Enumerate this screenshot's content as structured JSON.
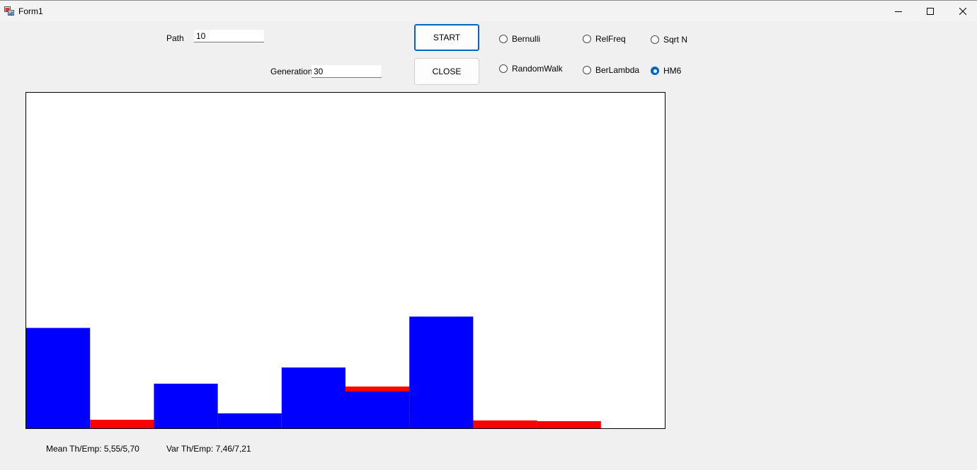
{
  "window": {
    "title": "Form1"
  },
  "form": {
    "path_label": "Path",
    "path_value": "10",
    "generation_label": "Generation",
    "generation_value": "30",
    "start_button": "START",
    "close_button": "CLOSE"
  },
  "radio_options": [
    {
      "label": "Bernulli",
      "checked": false
    },
    {
      "label": "RelFreq",
      "checked": false
    },
    {
      "label": "Sqrt N",
      "checked": false
    },
    {
      "label": "RandomWalk",
      "checked": false
    },
    {
      "label": "BerLambda",
      "checked": false
    },
    {
      "label": "HM6",
      "checked": true
    }
  ],
  "stats": {
    "mean": "Mean Th/Emp: 5,55/5,70",
    "var": "Var Th/Emp: 7,46/7,21"
  },
  "chart_data": {
    "type": "bar",
    "bins": 10,
    "blue_values": [
      142,
      0,
      63,
      21,
      86,
      52,
      158,
      0,
      0,
      0
    ],
    "red_values": [
      0,
      12,
      0,
      0,
      0,
      59,
      19,
      11,
      10,
      0
    ],
    "ylim": [
      0,
      475
    ],
    "colors": {
      "blue": "#0000ff",
      "red": "#ff0000"
    }
  }
}
